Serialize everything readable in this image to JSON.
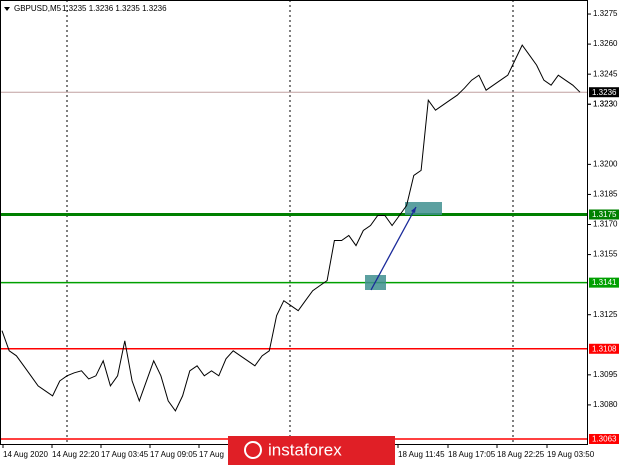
{
  "chart_data": {
    "type": "line",
    "title": "GBPUSD,M5",
    "quote": "1.3235 1.3236 1.3235 1.3236",
    "series": [
      {
        "color": "#000000",
        "values": [
          1.3117,
          1.3107,
          1.31045,
          1.30995,
          1.30945,
          1.30895,
          1.3087,
          1.30845,
          1.3092,
          1.30945,
          1.3096,
          1.3097,
          1.3093,
          1.30945,
          1.3102,
          1.30895,
          1.30945,
          1.3112,
          1.3092,
          1.3082,
          1.3092,
          1.3102,
          1.30945,
          1.3082,
          1.3077,
          1.30845,
          1.3097,
          1.30995,
          1.30945,
          1.3097,
          1.30945,
          1.3103,
          1.3107,
          1.31045,
          1.3102,
          1.30995,
          1.31045,
          1.3107,
          1.31245,
          1.3132,
          1.31295,
          1.3127,
          1.3132,
          1.3137,
          1.31395,
          1.3142,
          1.3162,
          1.3162,
          1.31645,
          1.31595,
          1.3167,
          1.31695,
          1.31745,
          1.31745,
          1.31695,
          1.31745,
          1.31795,
          1.31945,
          1.3197,
          1.3232,
          1.3227,
          1.32295,
          1.3232,
          1.32345,
          1.3238,
          1.3242,
          1.32445,
          1.3237,
          1.32395,
          1.3242,
          1.32445,
          1.3252,
          1.32595,
          1.32545,
          1.32495,
          1.3242,
          1.32395,
          1.32445,
          1.3242,
          1.32395,
          1.3236
        ]
      }
    ],
    "x_labels": [
      "14 Aug 2020",
      "14 Aug 22:20",
      "17 Aug 03:45",
      "17 Aug 09:05",
      "17 Aug",
      "18 Aug 11:45",
      "18 Aug 17:05",
      "18 Aug 22:25",
      "19 Aug 03:50"
    ],
    "ylim": [
      1.306,
      1.3282
    ],
    "yticks": [
      1.3275,
      {
        "value": 1.326,
        "label": "1.3260"
      },
      1.3245,
      1.323,
      {
        "value": 1.323,
        "label": "1.3230"
      },
      {
        "value": 1.32,
        "label": "1.3200"
      },
      1.3185,
      {
        "value": 1.317,
        "label": "1.3170"
      },
      1.3155,
      1.3125,
      1.3095,
      {
        "value": 1.308,
        "label": "1.3080"
      }
    ],
    "levels": [
      {
        "value": 1.3175,
        "color": "#008000"
      },
      {
        "value": 1.3141,
        "color": "#00a000"
      },
      {
        "value": 1.3108,
        "color": "#ff0000"
      },
      {
        "value": 1.3063,
        "color": "#ff0000"
      },
      {
        "value": 1.3236,
        "color": "#000000"
      }
    ],
    "watermark": "instaforex"
  }
}
